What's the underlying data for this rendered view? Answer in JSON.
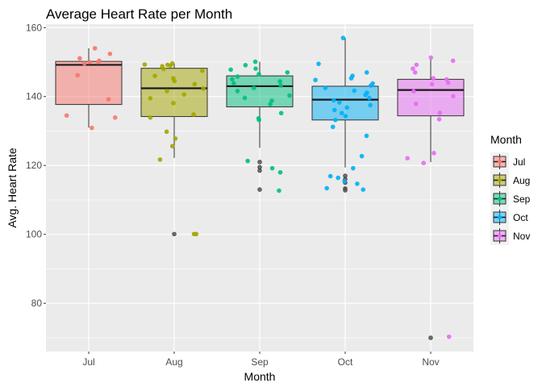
{
  "chart_data": {
    "type": "boxplot",
    "title": "Average Heart Rate per Month",
    "xlabel": "Month",
    "ylabel": "Avg. Heart Rate",
    "ylim": [
      66,
      161
    ],
    "yticks": [
      80,
      100,
      120,
      140,
      160
    ],
    "legend_title": "Month",
    "legend_position": "right",
    "grid": true,
    "categories": [
      "Jul",
      "Aug",
      "Sep",
      "Oct",
      "Nov"
    ],
    "series": [
      {
        "name": "Jul",
        "color": "#F8766D",
        "box": {
          "q1": 137.7,
          "median": 149.2,
          "q3": 150.2,
          "whisker_low": 131.0,
          "whisker_high": 154.0
        },
        "outliers": [],
        "points": [
          151.1,
          150.4,
          154.0,
          152.4,
          150.0,
          149.6,
          150.0,
          146.2,
          134.5,
          133.9,
          139.2,
          130.9
        ]
      },
      {
        "name": "Aug",
        "color": "#A3A500",
        "box": {
          "q1": 134.2,
          "median": 142.4,
          "q3": 148.2,
          "whisker_low": 122.2,
          "whisker_high": 149.6
        },
        "outliers": [
          100.1
        ],
        "points": [
          149.2,
          149.6,
          149.3,
          149.0,
          148.8,
          147.5,
          148.0,
          146.0,
          145.3,
          144.5,
          143.6,
          142.3,
          141.6,
          140.6,
          139.5,
          138.1,
          134.8,
          129.8,
          127.8,
          125.6,
          121.7,
          133.9,
          100.1,
          100.1
        ]
      },
      {
        "name": "Sep",
        "color": "#00BF7D",
        "box": {
          "q1": 137.0,
          "median": 143.0,
          "q3": 146.0,
          "whisker_low": 125.1,
          "whisker_high": 150.1
        },
        "outliers": [
          121.0,
          119.5,
          118.5,
          113.0
        ],
        "points": [
          150.1,
          149.1,
          148.1,
          147.8,
          147.0,
          146.5,
          145.8,
          145.0,
          144.4,
          143.8,
          143.2,
          142.5,
          141.6,
          140.3,
          139.6,
          138.8,
          137.8,
          135.2,
          133.7,
          133.2,
          121.3,
          119.2,
          118.0,
          112.7
        ]
      },
      {
        "name": "Oct",
        "color": "#00B0F6",
        "box": {
          "q1": 133.2,
          "median": 139.1,
          "q3": 143.0,
          "whisker_low": 119.4,
          "whisker_high": 157.0
        },
        "outliers": [
          117.0,
          116.0,
          115.0,
          113.3,
          112.8
        ],
        "points": [
          157.0,
          149.5,
          147.0,
          146.0,
          145.3,
          144.8,
          143.8,
          143.2,
          142.5,
          141.7,
          141.1,
          140.5,
          139.6,
          138.9,
          138.3,
          137.5,
          136.8,
          136.1,
          135.2,
          134.3,
          133.2,
          131.2,
          128.6,
          122.7,
          119.2,
          116.9,
          116.4,
          115.4,
          114.7,
          113.4,
          113.0
        ]
      },
      {
        "name": "Nov",
        "color": "#E76BF3",
        "box": {
          "q1": 134.4,
          "median": 141.9,
          "q3": 145.0,
          "whisker_low": 121.0,
          "whisker_high": 151.0
        },
        "outliers": [
          70.0
        ],
        "points": [
          151.3,
          150.4,
          149.2,
          148.1,
          147.0,
          145.3,
          145.0,
          144.0,
          143.6,
          141.5,
          140.1,
          137.9,
          135.3,
          133.4,
          123.6,
          122.1,
          120.7,
          70.3
        ]
      }
    ]
  }
}
